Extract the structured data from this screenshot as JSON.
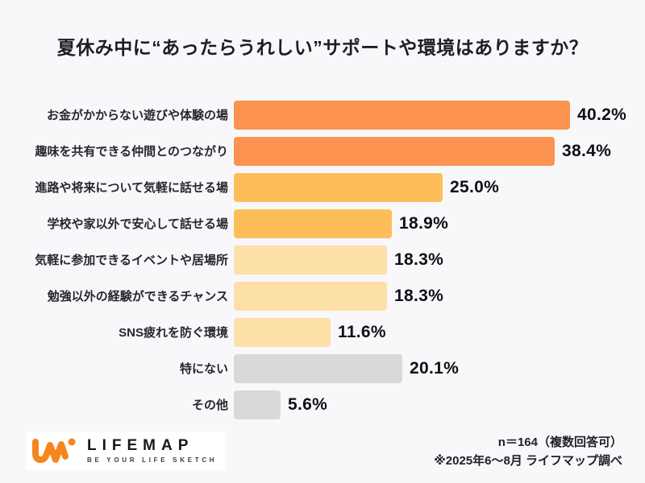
{
  "title": "夏休み中に“あったらうれしい”サポートや環境はありますか？",
  "chart_data": {
    "type": "bar",
    "orientation": "horizontal",
    "title": "夏休み中に“あったらうれしい”サポートや環境はありますか？",
    "categories": [
      "お金がかからない遊びや体験の場",
      "趣味を共有できる仲間とのつながり",
      "進路や将来について気軽に話せる場",
      "学校や家以外で安心して話せる場",
      "気軽に参加できるイベントや居場所",
      "勉強以外の経験ができるチャンス",
      "SNS疲れを防ぐ環境",
      "特にない",
      "その他"
    ],
    "values": [
      40.2,
      38.4,
      25.0,
      18.9,
      18.3,
      18.3,
      11.6,
      20.1,
      5.6
    ],
    "value_labels": [
      "40.2%",
      "38.4%",
      "25.0%",
      "18.9%",
      "18.3%",
      "18.3%",
      "11.6%",
      "20.1%",
      "5.6%"
    ],
    "bar_colors": [
      "#FC9350",
      "#FC9350",
      "#FDBD58",
      "#FDBD58",
      "#FDDFA8",
      "#FDDFA8",
      "#FDDFA8",
      "#D9D9D9",
      "#D9D9D9"
    ],
    "xlabel": "",
    "ylabel": "",
    "xlim": [
      0,
      45
    ],
    "grid": false,
    "legend": "none",
    "data_labels": "outside-end"
  },
  "footer": {
    "note_line1": "n＝164（複数回答可）",
    "note_line2": "※2025年6～8月 ライフマップ調べ",
    "logo_text": "LIFEMAP",
    "logo_tagline": "BE YOUR LIFE SKETCH"
  },
  "colors": {
    "background": "#F8F8FB",
    "bar_dark_orange": "#FC9350",
    "bar_amber": "#FDBD58",
    "bar_peach": "#FDDFA8",
    "bar_gray": "#D9D9D9",
    "logo_orange": "#F5861D",
    "text_dark": "#1D1D26"
  }
}
